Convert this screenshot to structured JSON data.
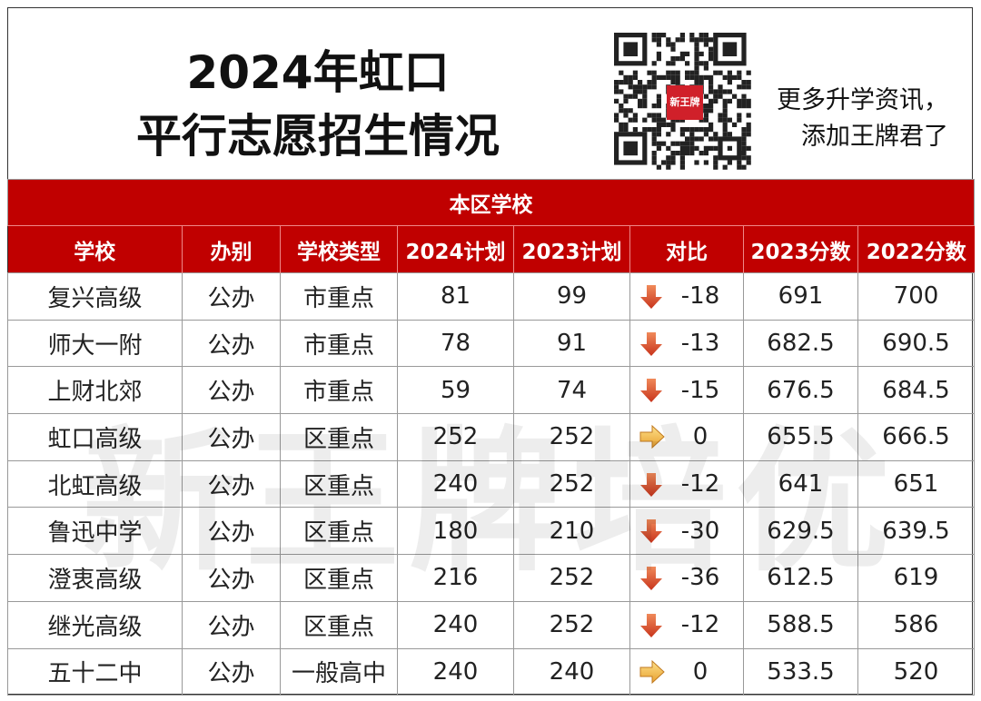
{
  "header": {
    "title": [
      "2024年虹口",
      "平行志愿招生情况"
    ],
    "qr_logo": "新王牌",
    "side_text": [
      "更多升学资讯，",
      "添加王牌君了"
    ]
  },
  "watermark": "新王牌培优",
  "table": {
    "section": "本区学校",
    "columns": [
      "学校",
      "办别",
      "学校类型",
      "2024计划",
      "2023计划",
      "对比",
      "2023分数",
      "2022分数"
    ],
    "rows": [
      [
        "复兴高级",
        "公办",
        "市重点",
        81,
        99,
        -18,
        691,
        700
      ],
      [
        "师大一附",
        "公办",
        "市重点",
        78,
        91,
        -13,
        682.5,
        690.5
      ],
      [
        "上财北郊",
        "公办",
        "市重点",
        59,
        74,
        -15,
        676.5,
        684.5
      ],
      [
        "虹口高级",
        "公办",
        "区重点",
        252,
        252,
        0,
        655.5,
        666.5
      ],
      [
        "北虹高级",
        "公办",
        "区重点",
        240,
        252,
        -12,
        641,
        651
      ],
      [
        "鲁迅中学",
        "公办",
        "区重点",
        180,
        210,
        -30,
        629.5,
        639.5
      ],
      [
        "澄衷高级",
        "公办",
        "区重点",
        216,
        252,
        -36,
        612.5,
        619
      ],
      [
        "继光高级",
        "公办",
        "区重点",
        240,
        252,
        -12,
        588.5,
        586
      ],
      [
        "五十二中",
        "公办",
        "一般高中",
        240,
        240,
        0,
        533.5,
        520
      ]
    ]
  }
}
